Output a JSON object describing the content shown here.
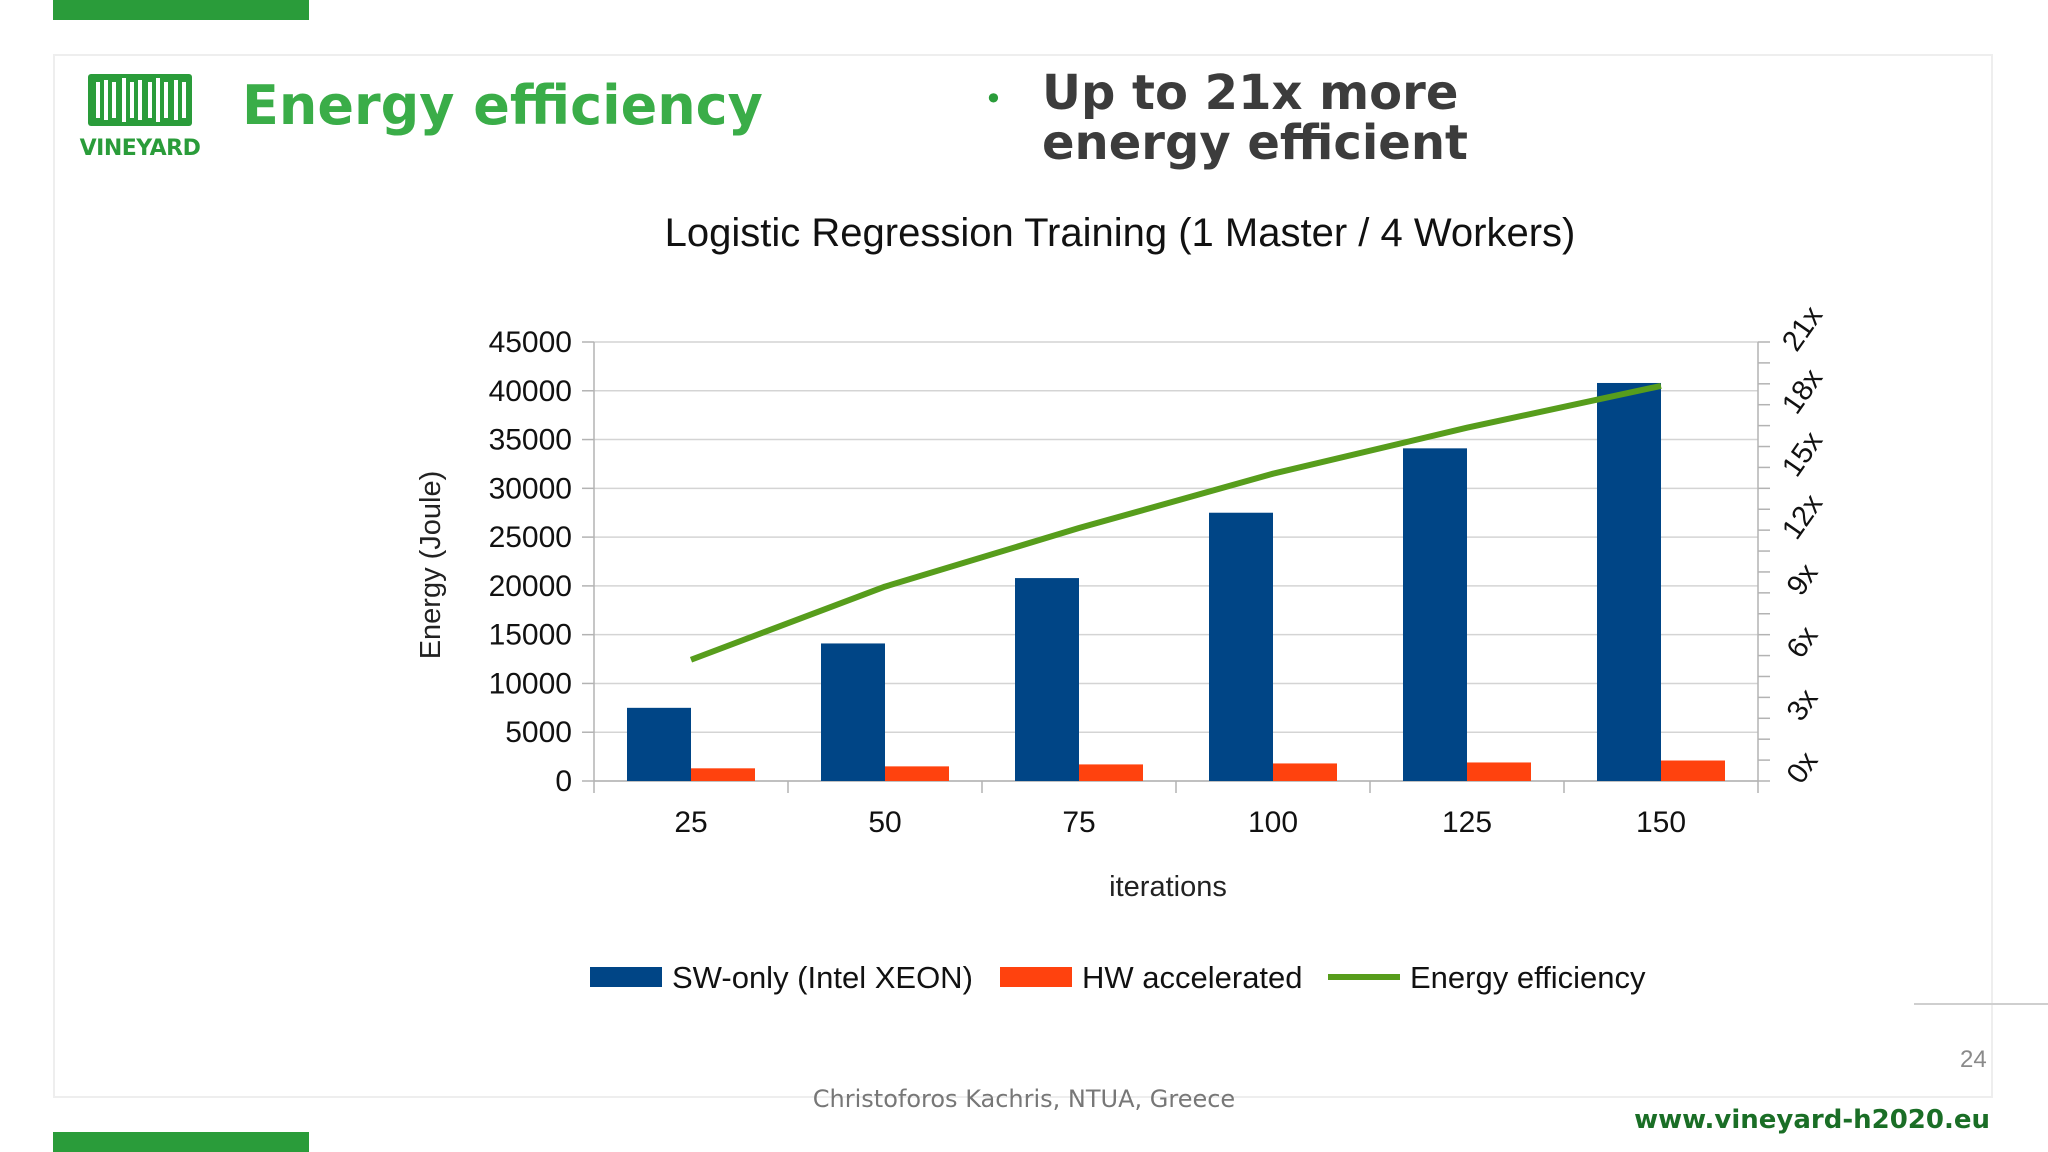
{
  "header": {
    "logo_text": "VINEYARD",
    "title": "Energy efficiency",
    "bullet": "Up to 21x more energy efficient"
  },
  "footer": {
    "author": "Christoforos Kachris, NTUA, Greece",
    "url": "www.vineyard-h2020.eu",
    "slide_number": "24"
  },
  "chart_data": {
    "type": "bar",
    "title": "Logistic Regression Training (1 Master / 4 Workers)",
    "xlabel": "iterations",
    "ylabel": "Energy (Joule)",
    "categories": [
      "25",
      "50",
      "75",
      "100",
      "125",
      "150"
    ],
    "ylim": [
      0,
      45000
    ],
    "yticks": [
      "0",
      "5000",
      "10000",
      "15000",
      "20000",
      "25000",
      "30000",
      "35000",
      "40000",
      "45000"
    ],
    "y2ticks": [
      "0x",
      "3x",
      "6x",
      "9x",
      "12x",
      "15x",
      "18x",
      "21x"
    ],
    "y2lim": [
      0,
      21
    ],
    "series": [
      {
        "name": "SW-only (Intel XEON)",
        "kind": "bar",
        "axis": "left",
        "color": "#004586",
        "values": [
          7500,
          14100,
          20800,
          27500,
          34100,
          40800
        ]
      },
      {
        "name": "HW accelerated",
        "kind": "bar",
        "axis": "left",
        "color": "#ff420e",
        "values": [
          1300,
          1500,
          1700,
          1800,
          1900,
          2100
        ]
      },
      {
        "name": "Energy efficiency",
        "kind": "line",
        "axis": "right",
        "color": "#579d1c",
        "values": [
          5.8,
          9.3,
          12.1,
          14.7,
          16.9,
          18.9
        ]
      }
    ],
    "legend_position": "bottom",
    "grid": true
  }
}
